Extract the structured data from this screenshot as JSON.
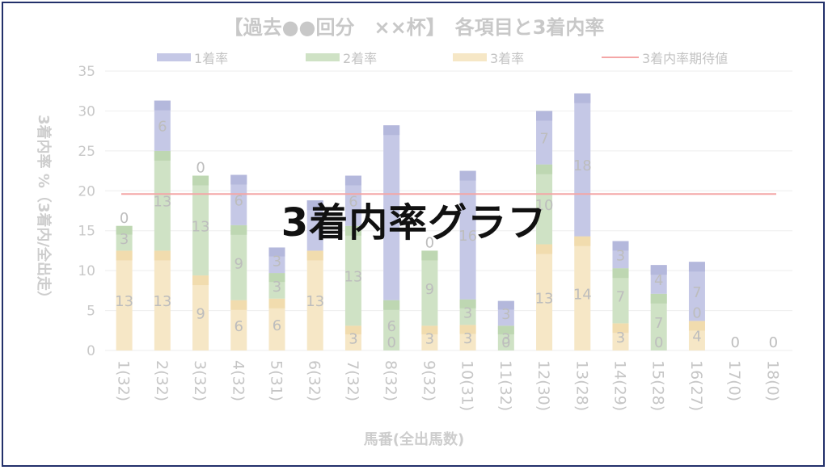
{
  "overlay_text": "3着内率グラフ",
  "colors": {
    "win": "#c5c8e6",
    "win_dark": "#b4b8dc",
    "place2": "#cfe2c5",
    "place2_dark": "#bed7b2",
    "place3": "#f6e7c6",
    "place3_dark": "#f1dcae",
    "expected": "#f4a6a6"
  },
  "chart_data": {
    "type": "bar",
    "stacked": true,
    "title": "【過去●●回分　××杯】　各項目と3着内率",
    "xlabel": "馬番(全出馬数)",
    "ylabel": "3着内率 %（3着内/全出走）",
    "ylim": [
      0,
      35
    ],
    "yticks": [
      0,
      5,
      10,
      15,
      20,
      25,
      30,
      35
    ],
    "grid": true,
    "legend_position": "top",
    "categories": [
      "1(32)",
      "2(32)",
      "3(32)",
      "4(32)",
      "5(31)",
      "6(32)",
      "7(32)",
      "8(32)",
      "9(32)",
      "10(31)",
      "11(32)",
      "12(30)",
      "13(28)",
      "14(29)",
      "15(28)",
      "16(27)",
      "17(0)",
      "18(0)"
    ],
    "series": [
      {
        "name": "3着率",
        "values": [
          12.5,
          12.5,
          9.4,
          6.3,
          6.5,
          12.5,
          3.1,
          0,
          3.1,
          3.2,
          0,
          13.3,
          14.3,
          3.4,
          0,
          3.7,
          0,
          0
        ],
        "labels": [
          "13",
          "13",
          "9",
          "6",
          "6",
          "13",
          "3",
          "0",
          "3",
          "3",
          "0",
          "13",
          "14",
          "3",
          "0",
          "4",
          "0",
          "0"
        ]
      },
      {
        "name": "2着率",
        "values": [
          3.1,
          12.5,
          12.5,
          9.4,
          3.2,
          0,
          12.5,
          6.3,
          9.4,
          3.2,
          3.1,
          10.0,
          0,
          6.9,
          7.1,
          0,
          0,
          0
        ],
        "labels": [
          "3",
          "13",
          "13",
          "9",
          "3",
          "",
          "13",
          "6",
          "9",
          "3",
          "3",
          "10",
          "",
          "7",
          "7",
          "0",
          "",
          ""
        ]
      },
      {
        "name": "1着率",
        "values": [
          0,
          6.3,
          0,
          6.3,
          3.2,
          6.3,
          6.3,
          21.9,
          0,
          16.1,
          3.1,
          6.7,
          17.9,
          3.4,
          3.6,
          7.4,
          0,
          0
        ],
        "labels": [
          "0",
          "6",
          "0",
          "6",
          "3",
          "",
          "6",
          "",
          "0",
          "16",
          "3",
          "7",
          "18",
          "3",
          "4",
          "7",
          "",
          ""
        ]
      }
    ],
    "reference_line": {
      "name": "3着内率期待値",
      "value": 19.6
    }
  }
}
